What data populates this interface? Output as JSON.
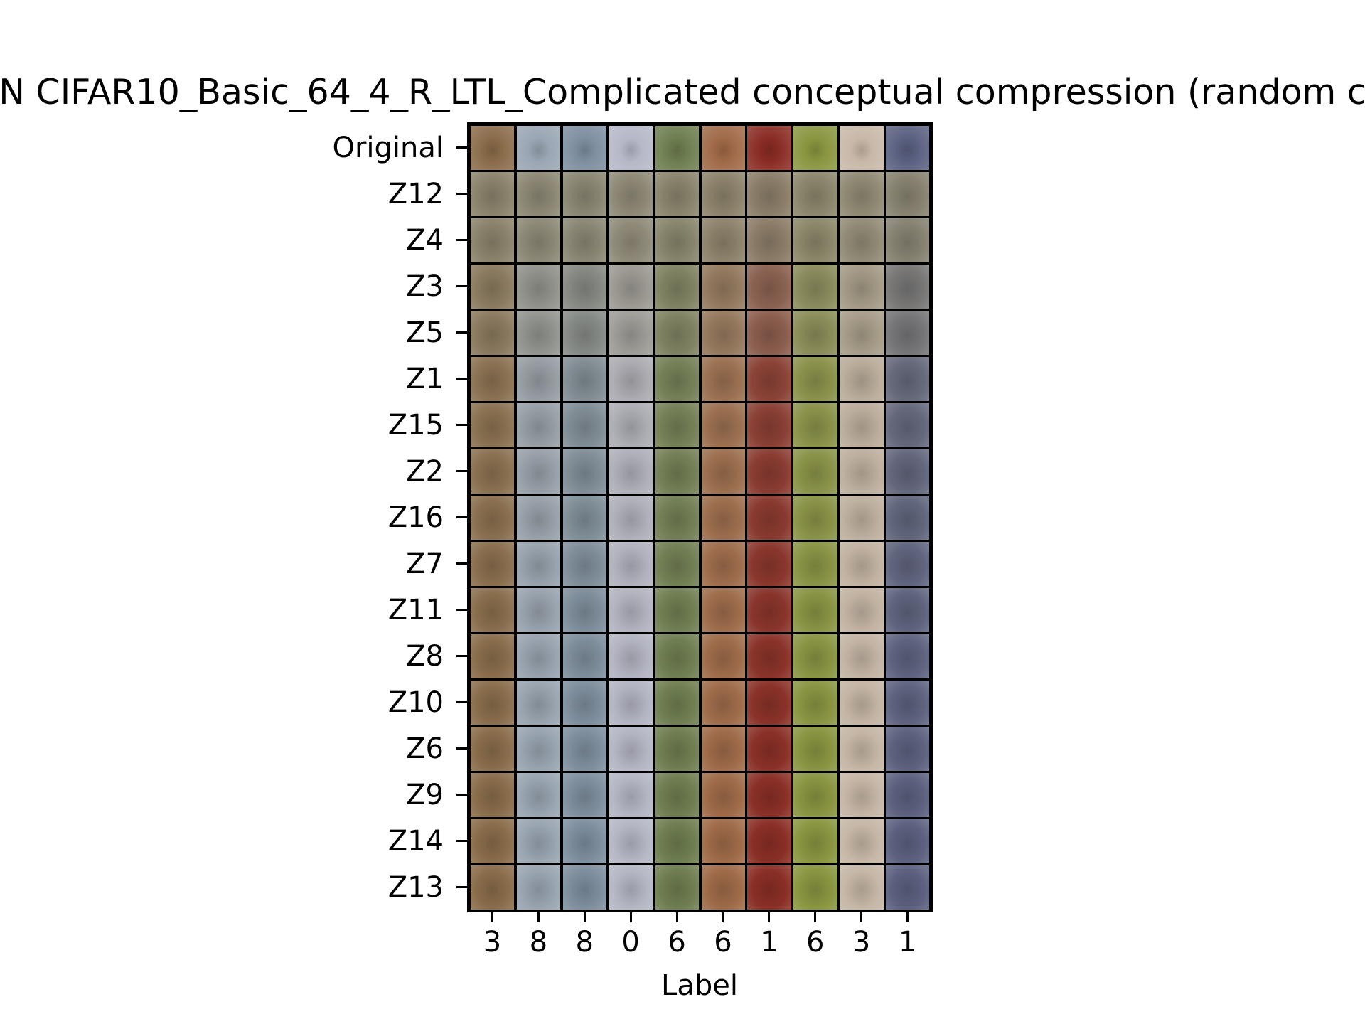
{
  "figure": {
    "title": "N CIFAR10_Basic_64_4_R_LTL_Complicated conceptual compression (random c",
    "x_label": "Label",
    "row_labels": [
      "Original",
      "Z12",
      "Z4",
      "Z3",
      "Z5",
      "Z1",
      "Z15",
      "Z2",
      "Z16",
      "Z7",
      "Z11",
      "Z8",
      "Z10",
      "Z6",
      "Z9",
      "Z14",
      "Z13"
    ],
    "column_labels": [
      "3",
      "8",
      "8",
      "0",
      "6",
      "6",
      "1",
      "6",
      "3",
      "1"
    ]
  },
  "tiles": {
    "column_colors": [
      "#8a6c4a",
      "#9aa6b4",
      "#7e8fa0",
      "#b6b8c8",
      "#6e7e50",
      "#a06a48",
      "#8a2c24",
      "#8a9640",
      "#c8b8a8",
      "#5a6080"
    ],
    "row_mix": [
      0.0,
      0.92,
      0.9,
      0.6,
      0.55,
      0.25,
      0.22,
      0.18,
      0.16,
      0.12,
      0.1,
      0.08,
      0.07,
      0.05,
      0.04,
      0.03,
      0.03
    ],
    "generic_color": "#8c8670"
  }
}
